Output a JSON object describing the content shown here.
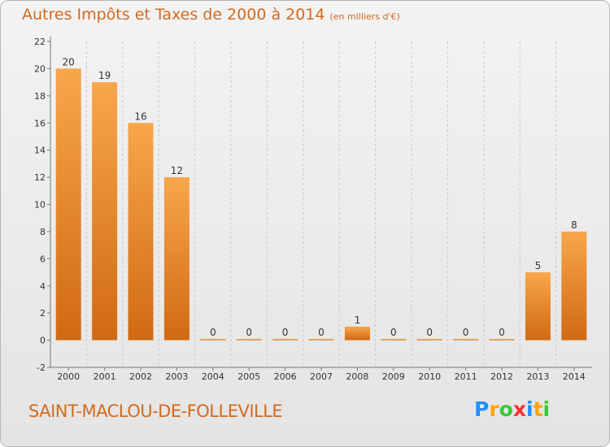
{
  "title": "Autres Impôts et Taxes de 2000 à 2014",
  "unit": "(en milliers d'€)",
  "place": "SAINT-MACLOU-DE-FOLLEVILLE",
  "logo": {
    "letters": [
      "P",
      "r",
      "o",
      "x",
      "i",
      "t",
      "i"
    ],
    "colors": [
      "#1e90ff",
      "#ffa500",
      "#32cd32",
      "#ff3030",
      "#1e90ff",
      "#ffa500",
      "#32cd32"
    ]
  },
  "colors": {
    "accent": "#d2691e",
    "bar_light": "#f8a64c",
    "bar_dark": "#d06a12",
    "axis": "#777777",
    "grid": "#c8c8c8"
  },
  "chart_data": {
    "type": "bar",
    "categories": [
      "2000",
      "2001",
      "2002",
      "2003",
      "2004",
      "2005",
      "2006",
      "2007",
      "2008",
      "2009",
      "2010",
      "2011",
      "2012",
      "2013",
      "2014"
    ],
    "values": [
      20,
      19,
      16,
      12,
      0,
      0,
      0,
      0,
      1,
      0,
      0,
      0,
      0,
      5,
      8
    ],
    "data_labels": [
      "20",
      "19",
      "16",
      "12",
      "0",
      "0",
      "0",
      "0",
      "1",
      "0",
      "0",
      "0",
      "0",
      "5",
      "8"
    ],
    "yticks": [
      -2,
      0,
      2,
      4,
      6,
      8,
      10,
      12,
      14,
      16,
      18,
      20,
      22
    ],
    "ylim": [
      -2,
      22
    ],
    "grid": "vertical dashed",
    "xlabel": "",
    "ylabel": ""
  }
}
